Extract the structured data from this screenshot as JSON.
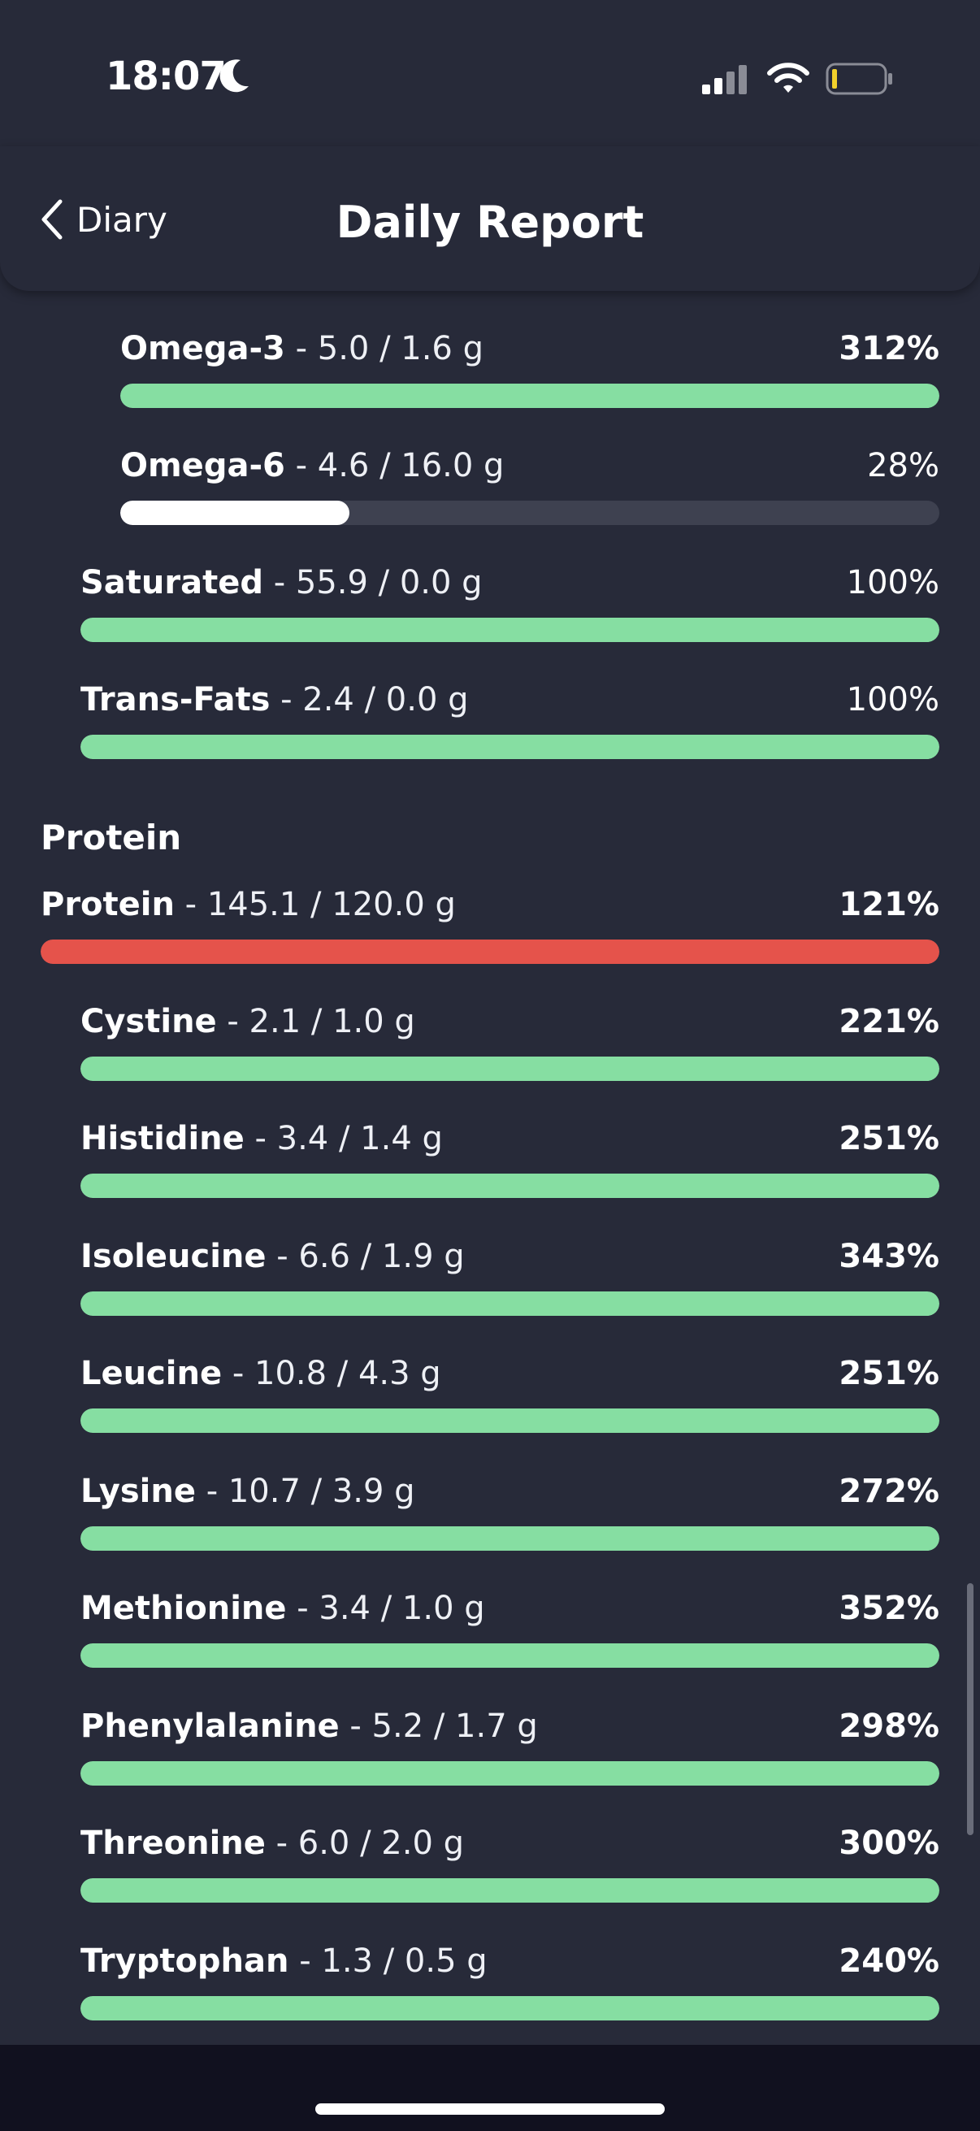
{
  "status_bar": {
    "time": "18:07"
  },
  "header": {
    "back_label": "Diary",
    "title": "Daily Report"
  },
  "colors": {
    "good": "#86dea2",
    "over": "#e5534b",
    "low": "#ffffff",
    "track": "#3e4150"
  },
  "fat_subitems": [
    {
      "name": "Omega-3",
      "amount": " - 5.0 / 1.6 g",
      "percent": "312%",
      "fill": 1.0,
      "status": "good",
      "indent": 2,
      "bold_pct": true
    },
    {
      "name": "Omega-6",
      "amount": " - 4.6 / 16.0 g",
      "percent": "28%",
      "fill": 0.28,
      "status": "low",
      "indent": 2,
      "bold_pct": false
    },
    {
      "name": "Saturated",
      "amount": " - 55.9 / 0.0 g",
      "percent": "100%",
      "fill": 1.0,
      "status": "good",
      "indent": 1,
      "bold_pct": false
    },
    {
      "name": "Trans-Fats",
      "amount": " - 2.4 / 0.0 g",
      "percent": "100%",
      "fill": 1.0,
      "status": "good",
      "indent": 1,
      "bold_pct": false
    }
  ],
  "protein_section": {
    "title": "Protein",
    "total": {
      "name": "Protein",
      "amount": " - 145.1 / 120.0 g",
      "percent": "121%",
      "fill": 1.0,
      "status": "over",
      "indent": 0,
      "bold_pct": true
    },
    "items": [
      {
        "name": "Cystine",
        "amount": " - 2.1 / 1.0 g",
        "percent": "221%",
        "fill": 1.0,
        "status": "good",
        "indent": 1,
        "bold_pct": true
      },
      {
        "name": "Histidine",
        "amount": " - 3.4 / 1.4 g",
        "percent": "251%",
        "fill": 1.0,
        "status": "good",
        "indent": 1,
        "bold_pct": true
      },
      {
        "name": "Isoleucine",
        "amount": " - 6.6 / 1.9 g",
        "percent": "343%",
        "fill": 1.0,
        "status": "good",
        "indent": 1,
        "bold_pct": true
      },
      {
        "name": "Leucine",
        "amount": " - 10.8 / 4.3 g",
        "percent": "251%",
        "fill": 1.0,
        "status": "good",
        "indent": 1,
        "bold_pct": true
      },
      {
        "name": "Lysine",
        "amount": " - 10.7 / 3.9 g",
        "percent": "272%",
        "fill": 1.0,
        "status": "good",
        "indent": 1,
        "bold_pct": true
      },
      {
        "name": "Methionine",
        "amount": " - 3.4 / 1.0 g",
        "percent": "352%",
        "fill": 1.0,
        "status": "good",
        "indent": 1,
        "bold_pct": true
      },
      {
        "name": "Phenylalanine",
        "amount": " - 5.2 / 1.7 g",
        "percent": "298%",
        "fill": 1.0,
        "status": "good",
        "indent": 1,
        "bold_pct": true
      },
      {
        "name": "Threonine",
        "amount": " - 6.0 / 2.0 g",
        "percent": "300%",
        "fill": 1.0,
        "status": "good",
        "indent": 1,
        "bold_pct": true
      },
      {
        "name": "Tryptophan",
        "amount": " - 1.3 / 0.5 g",
        "percent": "240%",
        "fill": 1.0,
        "status": "good",
        "indent": 1,
        "bold_pct": true
      }
    ]
  }
}
